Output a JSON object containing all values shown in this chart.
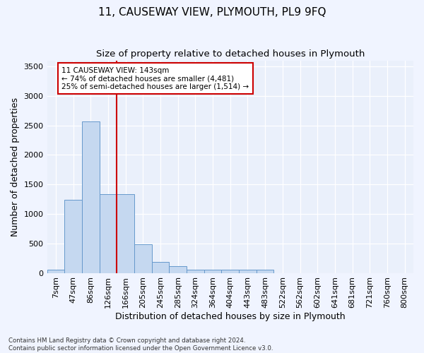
{
  "title": "11, CAUSEWAY VIEW, PLYMOUTH, PL9 9FQ",
  "subtitle": "Size of property relative to detached houses in Plymouth",
  "xlabel": "Distribution of detached houses by size in Plymouth",
  "ylabel": "Number of detached properties",
  "categories": [
    "7sqm",
    "47sqm",
    "86sqm",
    "126sqm",
    "166sqm",
    "205sqm",
    "245sqm",
    "285sqm",
    "324sqm",
    "364sqm",
    "404sqm",
    "443sqm",
    "483sqm",
    "522sqm",
    "562sqm",
    "602sqm",
    "641sqm",
    "681sqm",
    "721sqm",
    "760sqm",
    "800sqm"
  ],
  "values": [
    60,
    1240,
    2570,
    1340,
    1340,
    490,
    190,
    110,
    55,
    50,
    50,
    50,
    50,
    0,
    0,
    0,
    0,
    0,
    0,
    0,
    0
  ],
  "bar_color": "#c5d8f0",
  "bar_edge_color": "#6699cc",
  "vline_color": "#cc0000",
  "vline_x_index": 3,
  "annotation_text": "11 CAUSEWAY VIEW: 143sqm\n← 74% of detached houses are smaller (4,481)\n25% of semi-detached houses are larger (1,514) →",
  "annotation_box_color": "white",
  "annotation_box_edge_color": "#cc0000",
  "ylim_max": 3600,
  "yticks": [
    0,
    500,
    1000,
    1500,
    2000,
    2500,
    3000,
    3500
  ],
  "title_fontsize": 11,
  "xlabel_fontsize": 9,
  "ylabel_fontsize": 9,
  "tick_fontsize": 8,
  "footer_text": "Contains HM Land Registry data © Crown copyright and database right 2024.\nContains public sector information licensed under the Open Government Licence v3.0.",
  "background_color": "#f0f4ff",
  "plot_bg_color": "#eaf0fb"
}
